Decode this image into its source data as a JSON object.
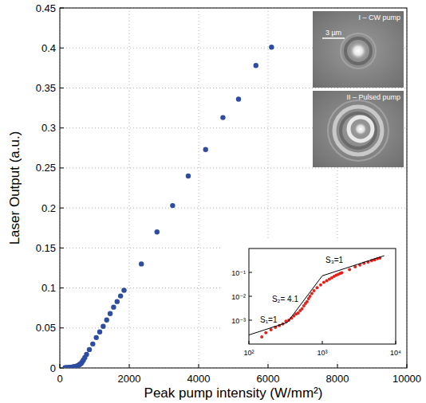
{
  "chart_data": [
    {
      "type": "scatter",
      "x_label": "Peak pump intensity (W/mm²)",
      "y_label": "Laser Output (a.u.)",
      "x": [
        150,
        170,
        200,
        230,
        260,
        290,
        320,
        350,
        380,
        410,
        440,
        470,
        500,
        530,
        560,
        590,
        620,
        650,
        680,
        720,
        770,
        850,
        950,
        1050,
        1150,
        1250,
        1350,
        1450,
        1550,
        1650,
        1750,
        1850,
        2350,
        2800,
        3250,
        3700,
        4200,
        4700,
        5150,
        5650,
        6100
      ],
      "values": [
        0.0002,
        0.0003,
        0.0004,
        0.0005,
        0.0006,
        0.0007,
        0.0009,
        0.001,
        0.0012,
        0.0015,
        0.0018,
        0.002,
        0.0025,
        0.003,
        0.004,
        0.005,
        0.006,
        0.008,
        0.01,
        0.013,
        0.017,
        0.023,
        0.03,
        0.038,
        0.045,
        0.052,
        0.06,
        0.068,
        0.076,
        0.083,
        0.09,
        0.097,
        0.13,
        0.17,
        0.203,
        0.24,
        0.273,
        0.313,
        0.336,
        0.378,
        0.401
      ],
      "color": "#2e4da0",
      "marker": "circle",
      "xlim": [
        0,
        10000
      ],
      "ylim": [
        0,
        0.45
      ],
      "xticks": [
        0,
        2000,
        4000,
        6000,
        8000,
        10000
      ],
      "yticks": [
        0,
        0.05,
        0.1,
        0.15,
        0.2,
        0.25,
        0.3,
        0.35,
        0.4,
        0.45
      ],
      "grid": true
    },
    {
      "type": "scatter",
      "log": true,
      "x": [
        150,
        170,
        200,
        230,
        260,
        290,
        320,
        350,
        380,
        410,
        440,
        470,
        500,
        530,
        560,
        590,
        620,
        650,
        680,
        720,
        770,
        850,
        950,
        1050,
        1150,
        1250,
        1350,
        1450,
        1550,
        1650,
        1750,
        1850,
        2350,
        2800,
        3250,
        3700,
        4200,
        4700,
        5150,
        5650,
        6100
      ],
      "values": [
        0.0002,
        0.0003,
        0.0004,
        0.0005,
        0.0006,
        0.0007,
        0.0009,
        0.001,
        0.0012,
        0.0015,
        0.0018,
        0.002,
        0.0025,
        0.003,
        0.004,
        0.005,
        0.006,
        0.008,
        0.01,
        0.013,
        0.017,
        0.023,
        0.03,
        0.038,
        0.045,
        0.052,
        0.06,
        0.068,
        0.076,
        0.083,
        0.09,
        0.097,
        0.13,
        0.17,
        0.203,
        0.24,
        0.273,
        0.313,
        0.336,
        0.378,
        0.401
      ],
      "color": "#e0231c",
      "marker": "circle",
      "xlim": [
        100,
        10000
      ],
      "ylim": [
        0.0001,
        1
      ],
      "xticks": [
        {
          "value": 100,
          "label": "10²"
        },
        {
          "value": 1000,
          "label": "10³"
        },
        {
          "value": 10000,
          "label": "10⁴"
        }
      ],
      "yticks": [
        {
          "value": 0.001,
          "label": "10⁻³"
        },
        {
          "value": 0.01,
          "label": "10⁻²"
        },
        {
          "value": 0.1,
          "label": "10⁻¹"
        }
      ],
      "grid": false,
      "fit_lines": [
        {
          "label": "S₁=1",
          "x": [
            100,
            333
          ],
          "values": [
            0.00024,
            0.0008
          ]
        },
        {
          "label": "S₂= 4.1",
          "x": [
            333,
            1000
          ],
          "values": [
            0.0008,
            0.072
          ]
        },
        {
          "label": "S₃=1",
          "x": [
            1000,
            7000
          ],
          "values": [
            0.072,
            0.5
          ]
        }
      ]
    }
  ],
  "image_insets": [
    {
      "label": "I – CW pump",
      "scale_bar": "3 µm"
    },
    {
      "label": "II – Pulsed pump"
    }
  ]
}
